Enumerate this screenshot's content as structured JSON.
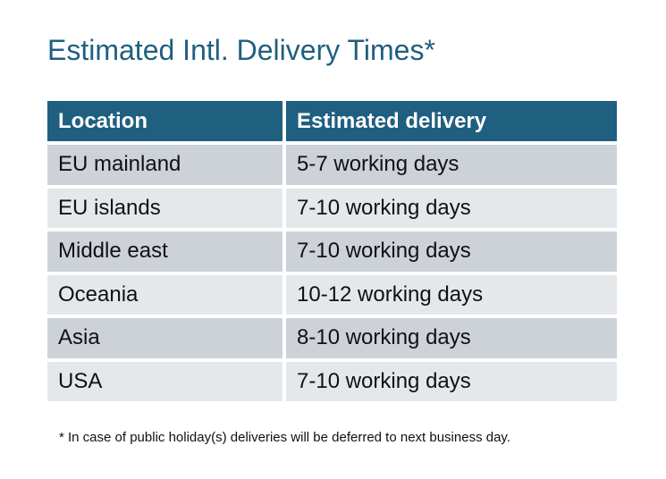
{
  "title": "Estimated Intl. Delivery Times*",
  "table": {
    "headers": [
      "Location",
      "Estimated delivery"
    ],
    "rows": [
      [
        "EU mainland",
        "5-7 working days"
      ],
      [
        "EU islands",
        "7-10 working days"
      ],
      [
        "Middle east",
        "7-10 working days"
      ],
      [
        "Oceania",
        "10-12 working days"
      ],
      [
        "Asia",
        "8-10 working days"
      ],
      [
        "USA",
        "7-10 working days"
      ]
    ]
  },
  "footnote": "* In case of public holiday(s) deliveries will be deferred to next business day.",
  "colors": {
    "header": "#1f5f80",
    "row_dark": "#cdd1d8",
    "row_light": "#e5e8eb"
  }
}
